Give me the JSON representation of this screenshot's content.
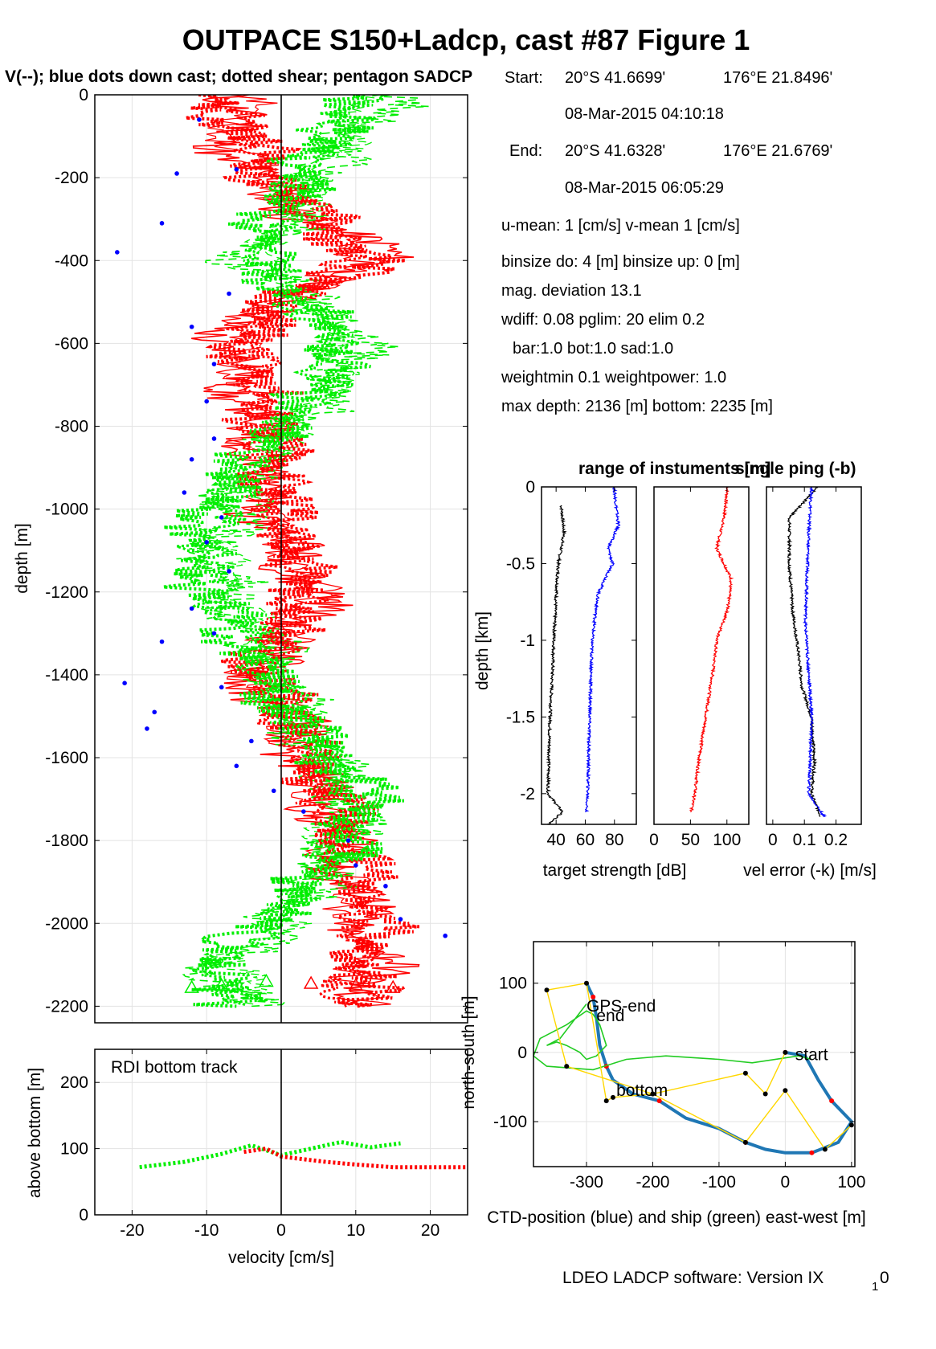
{
  "header": {
    "title": "OUTPACE S150+Ladcp, cast #87  Figure 1",
    "subtitle": "V(--); blue dots down cast; dotted shear; pentagon SADCP"
  },
  "info": {
    "start_label": "Start:",
    "start_lat": "20°S 41.6699'",
    "start_lon": "176°E 21.8496'",
    "start_time": "08-Mar-2015 04:10:18",
    "end_label": "End:",
    "end_lat": "20°S 41.6328'",
    "end_lon": "176°E 21.6769'",
    "end_time": "08-Mar-2015 06:05:29",
    "umean": "u-mean:   1 [cm/s]    v-mean   1 [cm/s]",
    "binsize": "binsize do: 4 [m]  binsize up:  0 [m]",
    "magdev": "mag. deviation 13.1",
    "wdiff": "wdiff: 0.08  pglim: 20  elim 0.2",
    "bar": "bar:1.0 bot:1.0 sad:1.0",
    "weight": "weightmin 0.1  weightpower: 1.0",
    "maxdepth": "max depth: 2136 [m]   bottom: 2235 [m]"
  },
  "footer": "LDEO LADCP software: Version IX",
  "footer_sub": "1",
  "footer_end": "0",
  "colors": {
    "red": "#ff0000",
    "green": "#00ee00",
    "blue": "#0000ff",
    "ctd": "#1f77b4",
    "ship": "#22cc22",
    "gps": "#ffd700"
  },
  "chart_data": [
    {
      "id": "velocity_profile",
      "type": "line",
      "xlabel": "velocity [cm/s]",
      "ylabel": "depth [m]",
      "xlim": [
        -25,
        25
      ],
      "ylim": [
        -2240,
        0
      ],
      "xticks": [
        -20,
        -10,
        0,
        10,
        20
      ],
      "yticks": [
        -2200,
        -2000,
        -1800,
        -1600,
        -1400,
        -1200,
        -1000,
        -800,
        -600,
        -400,
        -200,
        0
      ],
      "grid": true,
      "series": [
        {
          "color": "red",
          "style": "solid",
          "depth": [
            0,
            -100,
            -200,
            -300,
            -400,
            -500,
            -600,
            -700,
            -800,
            -900,
            -1000,
            -1100,
            -1200,
            -1300,
            -1400,
            -1500,
            -1600,
            -1700,
            -1800,
            -1900,
            -2000,
            -2100,
            -2200
          ],
          "values": [
            -5,
            -8,
            -3,
            4,
            15,
            -2,
            -8,
            -5,
            -4,
            -3,
            -2,
            1,
            5,
            2,
            -5,
            1,
            3,
            6,
            8,
            9,
            11,
            13,
            12
          ]
        },
        {
          "color": "green",
          "style": "dashed",
          "depth": [
            0,
            -100,
            -200,
            -300,
            -400,
            -500,
            -600,
            -700,
            -800,
            -900,
            -1000,
            -1100,
            -1200,
            -1300,
            -1400,
            -1500,
            -1600,
            -1700,
            -1800,
            -1900,
            -2000,
            -2100,
            -2200
          ],
          "values": [
            15,
            10,
            5,
            2,
            -5,
            5,
            10,
            9,
            2,
            -4,
            -6,
            -9,
            -7,
            -3,
            -1,
            3,
            5,
            10,
            8,
            5,
            0,
            -8,
            -4
          ]
        },
        {
          "color": "red",
          "style": "dotted",
          "depth": [
            0,
            -100,
            -200,
            -300,
            -400,
            -500,
            -600,
            -700,
            -800,
            -900,
            -1000,
            -1100,
            -1200,
            -1300,
            -1400,
            -1500,
            -1600,
            -1700,
            -1800,
            -1900,
            -2000,
            -2100,
            -2200
          ],
          "values": [
            -10,
            -5,
            -2,
            6,
            12,
            0,
            -6,
            -3,
            -2,
            -1,
            0,
            2,
            3,
            0,
            -3,
            2,
            4,
            7,
            9,
            11,
            13,
            12,
            10
          ]
        },
        {
          "color": "green",
          "style": "dotted",
          "depth": [
            0,
            -100,
            -200,
            -300,
            -400,
            -500,
            -600,
            -700,
            -800,
            -900,
            -1000,
            -1100,
            -1200,
            -1300,
            -1400,
            -1500,
            -1600,
            -1700,
            -1800,
            -1900,
            -2000,
            -2100,
            -2200
          ],
          "values": [
            12,
            6,
            3,
            -1,
            -3,
            3,
            8,
            6,
            0,
            -6,
            -10,
            -12,
            -10,
            -6,
            -2,
            2,
            7,
            12,
            9,
            4,
            -2,
            -10,
            -6
          ]
        }
      ],
      "down_cast_dots": [
        [
          -11,
          -60
        ],
        [
          -6,
          -180
        ],
        [
          -14,
          -190
        ],
        [
          -16,
          -310
        ],
        [
          -22,
          -380
        ],
        [
          -7,
          -480
        ],
        [
          -12,
          -560
        ],
        [
          -9,
          -650
        ],
        [
          -10,
          -740
        ],
        [
          -9,
          -830
        ],
        [
          -12,
          -880
        ],
        [
          -13,
          -960
        ],
        [
          -8,
          -1020
        ],
        [
          -10,
          -1080
        ],
        [
          -7,
          -1150
        ],
        [
          -12,
          -1240
        ],
        [
          -9,
          -1300
        ],
        [
          -16,
          -1320
        ],
        [
          -21,
          -1420
        ],
        [
          -8,
          -1430
        ],
        [
          -17,
          -1490
        ],
        [
          -4,
          -1560
        ],
        [
          -6,
          -1620
        ],
        [
          -1,
          -1680
        ],
        [
          3,
          -1730
        ],
        [
          9,
          -1800
        ],
        [
          10,
          -1860
        ],
        [
          14,
          -1910
        ],
        [
          16,
          -1990
        ],
        [
          22,
          -2030
        ],
        [
          -18,
          -1530
        ]
      ],
      "sadcp_triangles": [
        [
          -12,
          -2155
        ],
        [
          -8,
          -2150
        ],
        [
          -2,
          -2140
        ],
        [
          4,
          -2145
        ],
        [
          10,
          -2150
        ],
        [
          15,
          -2155
        ]
      ]
    },
    {
      "id": "bottom_track",
      "type": "line",
      "label": "RDI bottom track",
      "xlabel": "velocity [cm/s]",
      "ylabel": "above bottom [m]",
      "xlim": [
        -25,
        25
      ],
      "ylim": [
        0,
        250
      ],
      "xticks": [
        -20,
        -10,
        0,
        10,
        20
      ],
      "yticks": [
        0,
        100,
        200
      ],
      "grid": true,
      "series": [
        {
          "color": "green",
          "style": "dotted",
          "x": [
            -19,
            -13,
            -8,
            -4,
            0,
            4,
            8,
            12,
            16
          ],
          "y": [
            72,
            80,
            92,
            105,
            90,
            100,
            110,
            102,
            108
          ]
        },
        {
          "color": "red",
          "style": "dotted",
          "x": [
            -5,
            -2,
            0,
            3,
            6,
            10,
            15,
            20,
            25
          ],
          "y": [
            95,
            100,
            88,
            84,
            80,
            76,
            72,
            72,
            72
          ]
        }
      ]
    },
    {
      "id": "target_strength",
      "type": "line",
      "title": "range of instuments [m]",
      "xlabel": "target strength [dB]",
      "ylabel": "depth [km]",
      "xlim": [
        30,
        95
      ],
      "ylim": [
        -2.2,
        0
      ],
      "xticks": [
        40,
        60,
        80
      ],
      "yticks": [
        -2,
        -1.5,
        -1,
        -0.5,
        0
      ],
      "series": [
        {
          "color": "black",
          "depth": [
            -0.12,
            -0.3,
            -0.5,
            -0.8,
            -1.2,
            -1.6,
            -2.0,
            -2.12,
            -2.2
          ],
          "values": [
            43,
            45,
            41,
            39,
            37,
            35,
            34,
            44,
            34
          ]
        },
        {
          "color": "blue",
          "depth": [
            0,
            -0.25,
            -0.4,
            -0.5,
            -0.7,
            -1.0,
            -1.3,
            -1.6,
            -2.0,
            -2.12
          ],
          "values": [
            79,
            82,
            75,
            78,
            68,
            64,
            63,
            62,
            61,
            60
          ]
        }
      ]
    },
    {
      "id": "range",
      "type": "line",
      "xticks": [
        0,
        50,
        100
      ],
      "xlim": [
        0,
        130
      ],
      "ylim": [
        -2.2,
        0
      ],
      "series": [
        {
          "color": "red",
          "depth": [
            0,
            -0.2,
            -0.4,
            -0.6,
            -0.8,
            -1.0,
            -1.2,
            -1.5,
            -1.8,
            -2.0,
            -2.12
          ],
          "values": [
            100,
            95,
            85,
            105,
            100,
            85,
            80,
            70,
            60,
            55,
            50
          ]
        }
      ]
    },
    {
      "id": "vel_error",
      "type": "line",
      "title": "single ping (-b)",
      "xlabel": "vel error (-k) [m/s]",
      "xlim": [
        -0.02,
        0.28
      ],
      "ylim": [
        -2.2,
        0
      ],
      "xticks": [
        0,
        0.1,
        0.2
      ],
      "series": [
        {
          "color": "black",
          "depth": [
            0,
            -0.2,
            -0.5,
            -0.8,
            -1.1,
            -1.3,
            -1.5,
            -1.8,
            -2.0,
            -2.15
          ],
          "values": [
            0.14,
            0.05,
            0.05,
            0.06,
            0.08,
            0.09,
            0.12,
            0.13,
            0.12,
            0.15
          ]
        },
        {
          "color": "blue",
          "depth": [
            0,
            -0.3,
            -0.6,
            -0.9,
            -1.2,
            -1.5,
            -1.8,
            -2.0,
            -2.15
          ],
          "values": [
            0.12,
            0.11,
            0.105,
            0.1,
            0.11,
            0.12,
            0.115,
            0.11,
            0.16
          ]
        }
      ]
    },
    {
      "id": "track",
      "type": "line",
      "xlabel": "CTD-position (blue) and ship (green) east-west [m]",
      "ylabel": "north-south [m]",
      "xlim": [
        -380,
        105
      ],
      "ylim": [
        -165,
        160
      ],
      "xticks": [
        -300,
        -200,
        -100,
        0,
        100
      ],
      "yticks": [
        -100,
        0,
        100
      ],
      "labels": [
        {
          "text": "start",
          "x": 15,
          "y": -3
        },
        {
          "text": "end",
          "x": -285,
          "y": 53
        },
        {
          "text": "GPS-end",
          "x": -300,
          "y": 67
        },
        {
          "text": "bottom",
          "x": -255,
          "y": -55
        }
      ],
      "series": [
        {
          "name": "CTD",
          "color": "ctd",
          "x": [
            0,
            30,
            50,
            70,
            100,
            80,
            40,
            0,
            -30,
            -60,
            -100,
            -150,
            -190,
            -230,
            -260,
            -270,
            -280,
            -285,
            -290,
            -300
          ],
          "y": [
            0,
            -5,
            -40,
            -70,
            -100,
            -130,
            -145,
            -145,
            -140,
            -130,
            -110,
            -95,
            -70,
            -60,
            -40,
            -20,
            10,
            50,
            80,
            100
          ]
        },
        {
          "name": "ship",
          "color": "ship",
          "x": [
            40,
            20,
            -50,
            -100,
            -180,
            -240,
            -290,
            -360,
            -380,
            -370,
            -330,
            -300,
            -290,
            -280,
            -270,
            -285,
            -300,
            -310,
            -330,
            -345,
            -360,
            -340,
            -300
          ],
          "y": [
            -10,
            -5,
            -15,
            -10,
            -5,
            -10,
            -25,
            -20,
            -5,
            20,
            40,
            60,
            55,
            40,
            10,
            -5,
            -10,
            0,
            10,
            15,
            10,
            20,
            70
          ]
        },
        {
          "name": "GPS",
          "color": "gps",
          "x": [
            0,
            -30,
            -60,
            -200,
            -330,
            -360,
            -300,
            -270,
            -260,
            -200,
            -60,
            0,
            60,
            100
          ],
          "y": [
            0,
            -60,
            -30,
            -60,
            -20,
            90,
            100,
            -70,
            -65,
            -60,
            -130,
            -55,
            -140,
            -105
          ]
        }
      ]
    }
  ]
}
